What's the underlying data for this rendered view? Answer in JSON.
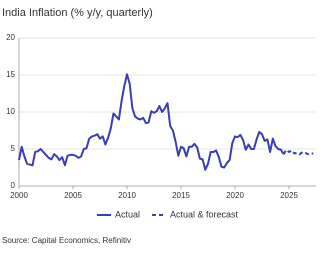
{
  "chart_data": {
    "type": "line",
    "title": "India Inflation (% y/y, quarterly)",
    "source": "Source: Capital Economics, Refinitiv",
    "xlim": [
      2000,
      2027.5
    ],
    "xticks": [
      2000,
      2005,
      2010,
      2015,
      2020,
      2025
    ],
    "ylim": [
      0,
      20
    ],
    "yticks": [
      0,
      5,
      10,
      15,
      20
    ],
    "grid": true,
    "legend": "bottom",
    "series": [
      {
        "name": "Actual",
        "color": "#3a3db5",
        "dash": false,
        "x": [
          2000,
          2000.25,
          2000.5,
          2000.75,
          2001,
          2001.25,
          2001.5,
          2001.75,
          2002,
          2002.25,
          2002.5,
          2002.75,
          2003,
          2003.25,
          2003.5,
          2003.75,
          2004,
          2004.25,
          2004.5,
          2004.75,
          2005,
          2005.25,
          2005.5,
          2005.75,
          2006,
          2006.25,
          2006.5,
          2006.75,
          2007,
          2007.25,
          2007.5,
          2007.75,
          2008,
          2008.25,
          2008.5,
          2008.75,
          2009,
          2009.25,
          2009.5,
          2009.75,
          2010,
          2010.25,
          2010.5,
          2010.75,
          2011,
          2011.25,
          2011.5,
          2011.75,
          2012,
          2012.25,
          2012.5,
          2012.75,
          2013,
          2013.25,
          2013.5,
          2013.75,
          2014,
          2014.25,
          2014.5,
          2014.75,
          2015,
          2015.25,
          2015.5,
          2015.75,
          2016,
          2016.25,
          2016.5,
          2016.75,
          2017,
          2017.25,
          2017.5,
          2017.75,
          2018,
          2018.25,
          2018.5,
          2018.75,
          2019,
          2019.25,
          2019.5,
          2019.75,
          2020,
          2020.25,
          2020.5,
          2020.75,
          2021,
          2021.25,
          2021.5,
          2021.75,
          2022,
          2022.25,
          2022.5,
          2022.75,
          2023,
          2023.25,
          2023.5,
          2023.75,
          2024,
          2024.25,
          2024.5
        ],
        "values": [
          3.5,
          5.3,
          4.0,
          3.0,
          2.9,
          2.8,
          4.6,
          4.7,
          5.0,
          4.6,
          4.2,
          3.8,
          3.6,
          4.3,
          4.0,
          3.5,
          3.9,
          2.8,
          4.1,
          4.2,
          4.2,
          4.1,
          3.8,
          4.0,
          5.0,
          5.1,
          6.4,
          6.7,
          6.8,
          7.0,
          6.4,
          6.7,
          5.6,
          6.5,
          7.8,
          9.8,
          9.4,
          9.0,
          11.5,
          13.5,
          15.1,
          13.8,
          10.5,
          9.4,
          9.1,
          9.0,
          9.2,
          8.5,
          8.6,
          10.1,
          9.9,
          10.1,
          10.8,
          10.0,
          10.5,
          11.2,
          8.1,
          7.5,
          6.0,
          4.1,
          5.3,
          5.1,
          4.0,
          5.3,
          5.3,
          5.7,
          5.2,
          3.7,
          3.6,
          2.2,
          3.0,
          4.6,
          4.6,
          4.8,
          3.9,
          2.6,
          2.5,
          3.1,
          3.5,
          5.8,
          6.7,
          6.6,
          6.9,
          6.2,
          4.9,
          5.6,
          5.0,
          5.0,
          6.3,
          7.3,
          7.0,
          6.1,
          6.3,
          4.6,
          6.4,
          5.4,
          5.0,
          4.9,
          4.3
        ]
      },
      {
        "name": "Actual & forecast",
        "color": "#3a3db5",
        "dash": true,
        "x": [
          2024.5,
          2024.75,
          2025,
          2025.25,
          2025.5,
          2025.75,
          2026,
          2026.25,
          2026.5,
          2026.75,
          2027,
          2027.25
        ],
        "values": [
          4.3,
          4.9,
          4.6,
          4.8,
          4.4,
          4.5,
          4.3,
          4.6,
          4.5,
          4.3,
          4.4,
          4.4
        ]
      }
    ]
  }
}
